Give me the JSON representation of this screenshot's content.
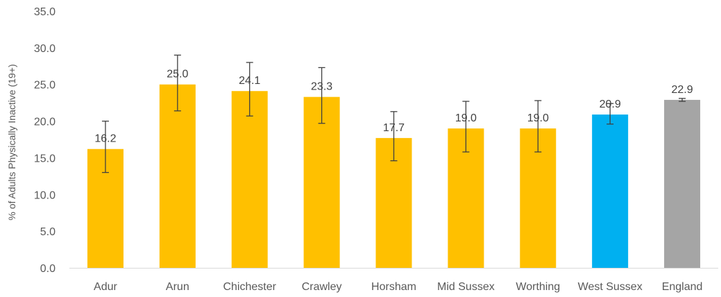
{
  "chart_data": {
    "type": "bar",
    "title": "",
    "xlabel": "",
    "ylabel": "% of Adults  Physically Inactive (19+)",
    "ylim": [
      0,
      35
    ],
    "yticks": [
      "0.0",
      "5.0",
      "10.0",
      "15.0",
      "20.0",
      "25.0",
      "30.0",
      "35.0"
    ],
    "grid": false,
    "legend": "none",
    "categories": [
      "Adur",
      "Arun",
      "Chichester",
      "Crawley",
      "Horsham",
      "Mid Sussex",
      "Worthing",
      "West Sussex",
      "England"
    ],
    "values": [
      16.2,
      25.0,
      24.1,
      23.3,
      17.7,
      19.0,
      19.0,
      20.9,
      22.9
    ],
    "value_labels": [
      "16.2",
      "25.0",
      "24.1",
      "23.3",
      "17.7",
      "19.0",
      "19.0",
      "20.9",
      "22.9"
    ],
    "error_low": [
      13.0,
      21.4,
      20.7,
      19.7,
      14.6,
      15.8,
      15.8,
      19.6,
      22.7
    ],
    "error_high": [
      20.0,
      29.0,
      28.0,
      27.3,
      21.3,
      22.7,
      22.8,
      22.4,
      23.1
    ],
    "colors": [
      "#FFC000",
      "#FFC000",
      "#FFC000",
      "#FFC000",
      "#FFC000",
      "#FFC000",
      "#FFC000",
      "#00B0F0",
      "#A5A5A5"
    ]
  }
}
